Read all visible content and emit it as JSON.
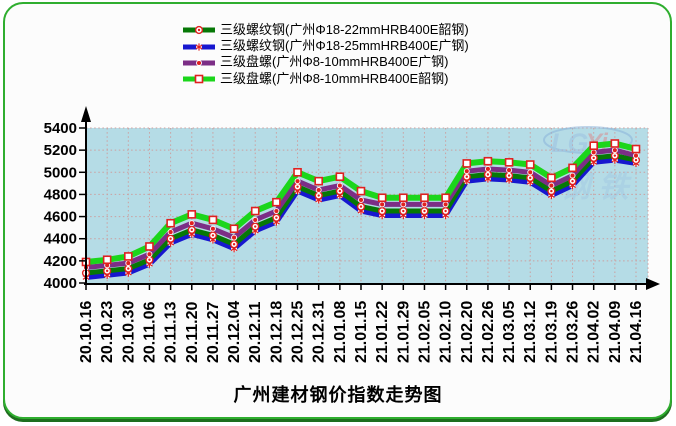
{
  "title": "广州建材钢价指数走势图",
  "frame": {
    "border_color": "#2fae2f",
    "shadow_color": "#1e6e1e",
    "background": "#fcfcfc"
  },
  "watermark": {
    "text_latin_blue": "LG",
    "text_latin_red": "Yi",
    "text_cjk": "钢 铁"
  },
  "legend": {
    "items": [
      {
        "label": "三级螺纹钢(广州Φ18-22mmHRB400E韶钢)",
        "color": "#067806",
        "marker": "circle"
      },
      {
        "label": "三级螺纹钢(广州Φ18-25mmHRB400E广钢)",
        "color": "#1717cf",
        "marker": "star"
      },
      {
        "label": "三级盘螺(广州Φ8-10mmHRB400E广钢)",
        "color": "#7c2e86",
        "marker": "dot"
      },
      {
        "label": "三级盘螺(广州Φ8-10mmHRB400E韶钢)",
        "color": "#1bd61b",
        "marker": "square"
      }
    ]
  },
  "chart_data": {
    "type": "line",
    "title": "广州建材钢价指数走势图",
    "categories": [
      "20.10.16",
      "20.10.23",
      "20.10.30",
      "20.11.06",
      "20.11.13",
      "20.11.20",
      "20.11.27",
      "20.12.04",
      "20.12.11",
      "20.12.18",
      "20.12.25",
      "20.12.31",
      "21.01.08",
      "21.01.15",
      "21.01.22",
      "21.01.29",
      "21.02.05",
      "21.02.10",
      "21.02.20",
      "21.02.26",
      "21.03.05",
      "21.03.12",
      "21.03.19",
      "21.03.26",
      "21.04.02",
      "21.04.09",
      "21.04.16"
    ],
    "series": [
      {
        "name": "三级螺纹钢(广州Φ18-22mmHRB400E韶钢)",
        "color": "#067806",
        "marker": "circle",
        "values": [
          4090,
          4110,
          4130,
          4210,
          4400,
          4480,
          4430,
          4350,
          4510,
          4590,
          4870,
          4790,
          4830,
          4690,
          4650,
          4650,
          4650,
          4650,
          4960,
          4980,
          4970,
          4950,
          4830,
          4920,
          5130,
          5150,
          5110
        ]
      },
      {
        "name": "三级螺纹钢(广州Φ18-25mmHRB400E广钢)",
        "color": "#1717cf",
        "marker": "star",
        "values": [
          4050,
          4070,
          4090,
          4170,
          4360,
          4440,
          4390,
          4310,
          4470,
          4550,
          4830,
          4750,
          4790,
          4650,
          4610,
          4610,
          4610,
          4610,
          4920,
          4940,
          4930,
          4910,
          4790,
          4880,
          5090,
          5110,
          5080
        ]
      },
      {
        "name": "三级盘螺(广州Φ8-10mmHRB400E广钢)",
        "color": "#7c2e86",
        "marker": "dot",
        "values": [
          4140,
          4160,
          4180,
          4260,
          4460,
          4540,
          4490,
          4410,
          4570,
          4650,
          4920,
          4840,
          4880,
          4750,
          4710,
          4710,
          4710,
          4710,
          5010,
          5030,
          5020,
          5000,
          4880,
          4970,
          5180,
          5200,
          5150
        ]
      },
      {
        "name": "三级盘螺(广州Φ8-10mmHRB400E韶钢)",
        "color": "#1bd61b",
        "marker": "square",
        "values": [
          4190,
          4210,
          4240,
          4330,
          4540,
          4620,
          4570,
          4490,
          4650,
          4730,
          5000,
          4920,
          4960,
          4830,
          4770,
          4770,
          4770,
          4770,
          5080,
          5100,
          5090,
          5070,
          4950,
          5040,
          5240,
          5260,
          5210
        ]
      }
    ],
    "ylim": [
      4000,
      5400
    ],
    "yticks": [
      4000,
      4200,
      4400,
      4600,
      4800,
      5000,
      5200,
      5400
    ],
    "grid": true,
    "legend_position": "top",
    "plot_bg": "#b5dce6",
    "grid_color": "#cc9f9f",
    "axis_color": "#000000",
    "marker_color": "#e02020"
  }
}
